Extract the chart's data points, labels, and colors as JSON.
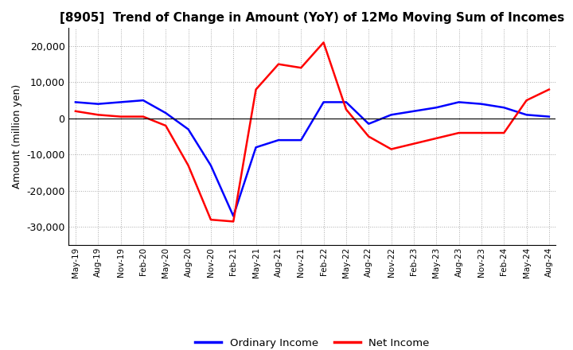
{
  "title": "[8905]  Trend of Change in Amount (YoY) of 12Mo Moving Sum of Incomes",
  "ylabel": "Amount (million yen)",
  "ylim": [
    -35000,
    25000
  ],
  "yticks": [
    -30000,
    -20000,
    -10000,
    0,
    10000,
    20000
  ],
  "legend_labels": [
    "Ordinary Income",
    "Net Income"
  ],
  "line_colors": [
    "blue",
    "red"
  ],
  "dates": [
    "May-19",
    "Aug-19",
    "Nov-19",
    "Feb-20",
    "May-20",
    "Aug-20",
    "Nov-20",
    "Feb-21",
    "May-21",
    "Aug-21",
    "Nov-21",
    "Feb-22",
    "May-22",
    "Aug-22",
    "Nov-22",
    "Feb-23",
    "May-23",
    "Aug-23",
    "Nov-23",
    "Feb-24",
    "May-24",
    "Aug-24"
  ],
  "ordinary_income": [
    4500,
    4000,
    4500,
    5000,
    1500,
    -3000,
    -13000,
    -27000,
    -8000,
    -6000,
    -6000,
    4500,
    4500,
    -1500,
    1000,
    2000,
    3000,
    4500,
    4000,
    3000,
    1000,
    500
  ],
  "net_income": [
    2000,
    1000,
    500,
    500,
    -2000,
    -13000,
    -28000,
    -28500,
    8000,
    15000,
    14000,
    21000,
    2500,
    -5000,
    -8500,
    -7000,
    -5500,
    -4000,
    -4000,
    -4000,
    5000,
    8000
  ]
}
